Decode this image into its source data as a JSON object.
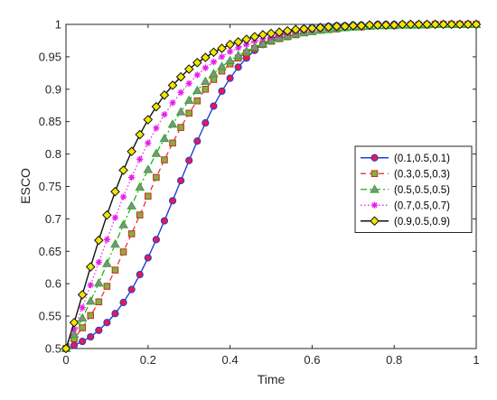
{
  "chart_data": {
    "type": "line",
    "xlabel": "Time",
    "ylabel": "ESCO",
    "xlim": [
      0,
      1
    ],
    "ylim": [
      0.5,
      1
    ],
    "x_ticks": [
      "0",
      "0.2",
      "0.4",
      "0.6",
      "0.8",
      "1"
    ],
    "y_ticks": [
      "0.5",
      "0.55",
      "0.6",
      "0.65",
      "0.7",
      "0.75",
      "0.8",
      "0.85",
      "0.9",
      "0.95",
      "1"
    ],
    "grid": false,
    "legend_position": "center-right",
    "x": [
      0,
      0.02,
      0.04,
      0.06,
      0.08,
      0.1,
      0.12,
      0.14,
      0.16,
      0.18,
      0.2,
      0.22,
      0.24,
      0.26,
      0.28,
      0.3,
      0.32,
      0.34,
      0.36,
      0.38,
      0.4,
      0.42,
      0.44,
      0.46,
      0.48,
      0.5,
      0.52,
      0.54,
      0.56,
      0.58,
      0.6,
      0.62,
      0.64,
      0.66,
      0.68,
      0.7,
      0.72,
      0.74,
      0.76,
      0.78,
      0.8,
      0.82,
      0.84,
      0.86,
      0.88,
      0.9,
      0.92,
      0.94,
      0.96,
      0.98,
      1
    ],
    "series": [
      {
        "name": "(0.1,0.5,0.1)",
        "color": "#1f3fd6",
        "marker": "circle",
        "marker_fill": "#e8194a",
        "line_style": "solid",
        "values": [
          0.5,
          0.505,
          0.511,
          0.518,
          0.528,
          0.54,
          0.554,
          0.571,
          0.591,
          0.614,
          0.64,
          0.668,
          0.697,
          0.728,
          0.759,
          0.79,
          0.82,
          0.848,
          0.874,
          0.897,
          0.917,
          0.934,
          0.948,
          0.96,
          0.969,
          0.977,
          0.983,
          0.987,
          0.991,
          0.993,
          0.995,
          0.996,
          0.997,
          0.998,
          0.998,
          0.999,
          0.999,
          0.999,
          1,
          1,
          1,
          1,
          1,
          1,
          1,
          1,
          1,
          1,
          1,
          1,
          1
        ]
      },
      {
        "name": "(0.3,0.5,0.3)",
        "color": "#e8262a",
        "marker": "square",
        "marker_fill": "#7cb342",
        "line_style": "dashed",
        "values": [
          0.5,
          0.515,
          0.532,
          0.551,
          0.572,
          0.596,
          0.621,
          0.649,
          0.677,
          0.706,
          0.735,
          0.764,
          0.791,
          0.817,
          0.841,
          0.863,
          0.882,
          0.9,
          0.915,
          0.928,
          0.939,
          0.948,
          0.956,
          0.963,
          0.969,
          0.974,
          0.978,
          0.981,
          0.984,
          0.987,
          0.989,
          0.991,
          0.992,
          0.993,
          0.995,
          0.996,
          0.996,
          0.997,
          0.998,
          0.998,
          0.998,
          0.999,
          0.999,
          0.999,
          0.999,
          1,
          1,
          1,
          1,
          1,
          1
        ]
      },
      {
        "name": "(0.5,0.5,0.5)",
        "color": "#12b312",
        "marker": "triangle",
        "marker_fill": "#8a8a8a",
        "line_style": "dashdot",
        "values": [
          0.5,
          0.522,
          0.547,
          0.573,
          0.601,
          0.631,
          0.661,
          0.691,
          0.72,
          0.749,
          0.776,
          0.801,
          0.824,
          0.846,
          0.865,
          0.883,
          0.898,
          0.912,
          0.924,
          0.935,
          0.944,
          0.952,
          0.959,
          0.965,
          0.97,
          0.975,
          0.979,
          0.982,
          0.985,
          0.987,
          0.989,
          0.991,
          0.992,
          0.994,
          0.995,
          0.996,
          0.997,
          0.997,
          0.998,
          0.998,
          0.999,
          0.999,
          0.999,
          0.999,
          1,
          1,
          1,
          1,
          1,
          1,
          1
        ]
      },
      {
        "name": "(0.7,0.5,0.7)",
        "color": "#e81ae8",
        "marker": "star",
        "marker_fill": "#e81ae8",
        "line_style": "dotted",
        "values": [
          0.5,
          0.53,
          0.563,
          0.598,
          0.633,
          0.668,
          0.702,
          0.734,
          0.764,
          0.792,
          0.817,
          0.84,
          0.861,
          0.879,
          0.895,
          0.909,
          0.922,
          0.933,
          0.942,
          0.95,
          0.958,
          0.964,
          0.969,
          0.974,
          0.978,
          0.981,
          0.984,
          0.987,
          0.989,
          0.991,
          0.992,
          0.994,
          0.995,
          0.996,
          0.996,
          0.997,
          0.998,
          0.998,
          0.998,
          0.999,
          0.999,
          0.999,
          0.999,
          1,
          1,
          1,
          1,
          1,
          1,
          1,
          1
        ]
      },
      {
        "name": "(0.9,0.5,0.9)",
        "color": "#111111",
        "marker": "diamond",
        "marker_fill": "#f2e600",
        "line_style": "solid",
        "values": [
          0.5,
          0.54,
          0.583,
          0.626,
          0.667,
          0.706,
          0.742,
          0.775,
          0.804,
          0.83,
          0.853,
          0.873,
          0.891,
          0.906,
          0.919,
          0.931,
          0.941,
          0.949,
          0.957,
          0.963,
          0.969,
          0.973,
          0.977,
          0.981,
          0.984,
          0.986,
          0.988,
          0.99,
          0.992,
          0.993,
          0.994,
          0.995,
          0.996,
          0.997,
          0.997,
          0.998,
          0.998,
          0.999,
          0.999,
          0.999,
          0.999,
          1,
          1,
          1,
          1,
          1,
          1,
          1,
          1,
          1,
          1
        ]
      }
    ]
  }
}
